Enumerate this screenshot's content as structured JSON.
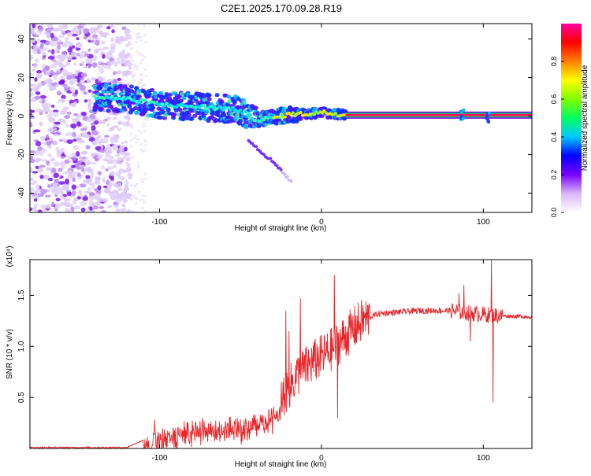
{
  "page_title": "C2E1.2025.170.09.28.R19",
  "chart_data": [
    {
      "type": "heatmap",
      "title": "C2E1.2025.170.09.28.R19",
      "xlabel": "Height of straight line (km)",
      "ylabel": "Frequency (Hz)",
      "xlim": [
        -180,
        130
      ],
      "ylim": [
        -50,
        48
      ],
      "xticks": [
        -100,
        0,
        100
      ],
      "yticks": [
        -40,
        -20,
        0,
        20,
        40
      ],
      "ytick_labels": [
        "-40",
        "-20",
        "0",
        "20",
        "40"
      ],
      "xtick_labels": [
        "-100",
        "0",
        "100"
      ],
      "colorbar": {
        "label": "Normalized spectral amplitude",
        "range": [
          0.0,
          1.0
        ],
        "ticks": [
          0.0,
          0.2,
          0.4,
          0.6,
          0.8
        ],
        "tick_labels": [
          "0.0",
          "0.2",
          "0.4",
          "0.6",
          "0.8"
        ],
        "colormap": [
          "#ffffff",
          "#d8b8f8",
          "#7a00ff",
          "#0000ff",
          "#00c8ff",
          "#00ff60",
          "#80ff00",
          "#ffff00",
          "#ff8000",
          "#ff0000",
          "#ff00a0"
        ]
      },
      "features": {
        "noise_region_x": [
          -180,
          -118
        ],
        "echo_trace": [
          [
            -140,
            10
          ],
          [
            -120,
            9
          ],
          [
            -100,
            6
          ],
          [
            -80,
            5
          ],
          [
            -60,
            4
          ],
          [
            -50,
            3
          ],
          [
            -40,
            -2
          ],
          [
            -30,
            -1
          ],
          [
            -20,
            1
          ],
          [
            -10,
            1
          ],
          [
            0,
            2
          ],
          [
            10,
            1
          ],
          [
            15,
            0.5
          ]
        ],
        "stray_trace": [
          [
            -45,
            -12
          ],
          [
            -38,
            -18
          ],
          [
            -28,
            -25
          ],
          [
            -18,
            -35
          ]
        ],
        "carrier_line": {
          "x_start": 15,
          "x_end": 130,
          "freq": 0.5
        },
        "carrier_blips": [
          87,
          103
        ]
      }
    },
    {
      "type": "line",
      "xlabel": "Height of straight line (km)",
      "ylabel": "SNR (10 * v/v)",
      "y_multiplier_label": "(x10⁴)",
      "xlim": [
        -180,
        130
      ],
      "ylim": [
        0,
        1.85
      ],
      "xticks": [
        -100,
        0,
        100
      ],
      "xtick_labels": [
        "-100",
        "0",
        "100"
      ],
      "yticks": [
        0.5,
        1.0,
        1.5
      ],
      "ytick_labels": [
        "0.5",
        "1.0",
        "1.5"
      ],
      "series": [
        {
          "color": "#e8262a",
          "envelope": [
            [
              -180,
              0.01
            ],
            [
              -120,
              0.01
            ],
            [
              -105,
              0.12
            ],
            [
              -80,
              0.22
            ],
            [
              -60,
              0.24
            ],
            [
              -45,
              0.28
            ],
            [
              -30,
              0.35
            ],
            [
              -22,
              0.55
            ],
            [
              -15,
              0.72
            ],
            [
              -5,
              0.85
            ],
            [
              5,
              0.95
            ],
            [
              15,
              1.1
            ],
            [
              25,
              1.25
            ],
            [
              35,
              1.32
            ],
            [
              60,
              1.35
            ],
            [
              80,
              1.35
            ],
            [
              95,
              1.32
            ],
            [
              110,
              1.3
            ],
            [
              130,
              1.29
            ]
          ],
          "spikes": [
            [
              -103,
              0.28
            ],
            [
              -22,
              1.35
            ],
            [
              -20,
              1.15
            ],
            [
              -13,
              1.47
            ],
            [
              8,
              1.7
            ],
            [
              10,
              0.3
            ],
            [
              85,
              1.52
            ],
            [
              88,
              1.6
            ],
            [
              92,
              1.05
            ],
            [
              105,
              1.85
            ],
            [
              106,
              0.45
            ]
          ]
        }
      ]
    }
  ]
}
